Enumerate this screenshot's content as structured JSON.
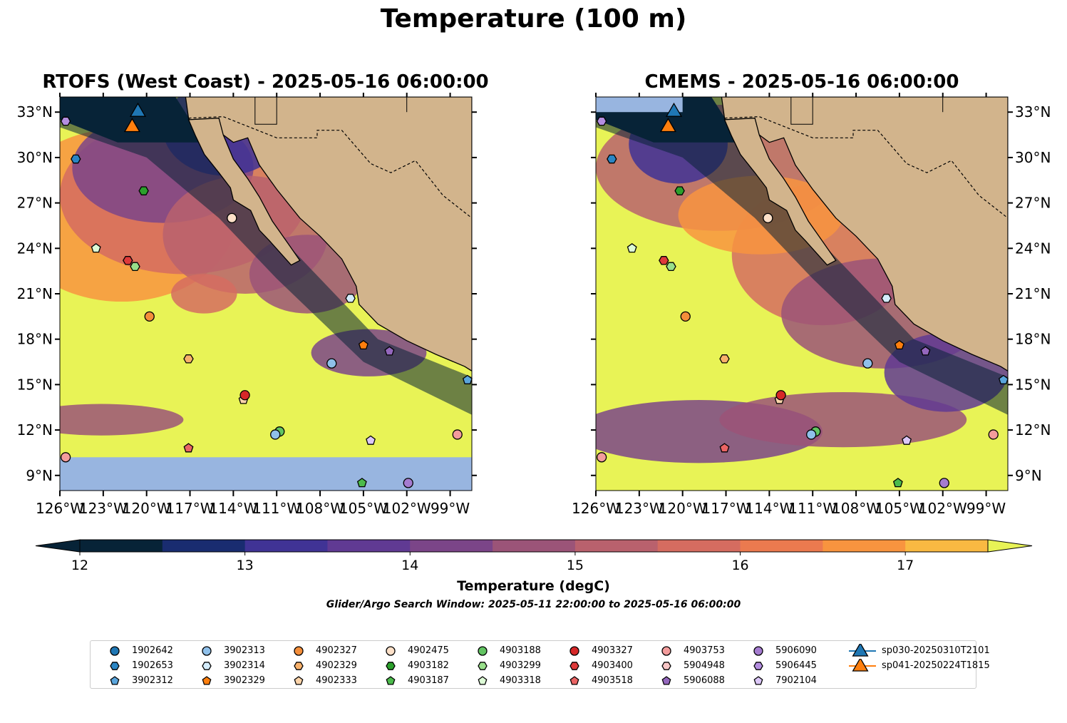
{
  "title": "Temperature (100 m)",
  "panels": [
    {
      "title": "RTOFS (West Coast) - 2025-05-16 06:00:00",
      "model": "rtofs"
    },
    {
      "title": "CMEMS - 2025-05-16 06:00:00",
      "model": "cmems"
    }
  ],
  "map": {
    "lon_range": [
      -126,
      -97.5
    ],
    "lat_range": [
      8,
      34
    ],
    "lon_ticks": [
      "126°W",
      "123°W",
      "120°W",
      "117°W",
      "114°W",
      "111°W",
      "108°W",
      "105°W",
      "102°W",
      "99°W"
    ],
    "lat_ticks": [
      "9°N",
      "12°N",
      "15°N",
      "18°N",
      "21°N",
      "24°N",
      "27°N",
      "30°N",
      "33°N"
    ],
    "colors": {
      "land": "#d2b48c",
      "ocean_nodata": "#98b5e0",
      "cold": "#072337",
      "warm": "#e8f356"
    }
  },
  "colorbar": {
    "label": "Temperature (degC)",
    "ticks": [
      "12",
      "13",
      "14",
      "15",
      "16",
      "17"
    ],
    "min": 12,
    "max": 17.5,
    "step": 0.5,
    "colors": [
      "#072337",
      "#192c70",
      "#403395",
      "#603a93",
      "#7b4588",
      "#9b5478",
      "#b9616d",
      "#d56c60",
      "#eb7a4f",
      "#f8943f",
      "#f9b942",
      "#e8f356"
    ]
  },
  "search_window": "Glider/Argo Search Window: 2025-05-11 22:00:00 to 2025-05-16 06:00:00",
  "floats": [
    {
      "id": "1902642",
      "marker": "circle",
      "color": "#1f77b4",
      "lon": -120.0,
      "lat": 8.0,
      "show": false
    },
    {
      "id": "1902653",
      "marker": "hexagon",
      "color": "#2a85c4",
      "lon": -124.9,
      "lat": 29.9
    },
    {
      "id": "3902312",
      "marker": "pentagon",
      "color": "#5aa5dc",
      "lon": -97.8,
      "lat": 15.3
    },
    {
      "id": "3902313",
      "marker": "circle",
      "color": "#8fc0ea",
      "lon": -107.2,
      "lat": 16.4
    },
    {
      "id": "3902314",
      "marker": "hexagon",
      "color": "#d4ecfb",
      "lon": -105.9,
      "lat": 20.7
    },
    {
      "id": "3902329",
      "marker": "pentagon",
      "color": "#ff7f0e",
      "lon": -105.0,
      "lat": 17.6
    },
    {
      "id": "4902327",
      "marker": "circle",
      "color": "#f48e3a",
      "lon": -119.8,
      "lat": 19.5
    },
    {
      "id": "4902329",
      "marker": "hexagon",
      "color": "#f8b16b",
      "lon": -117.1,
      "lat": 16.7
    },
    {
      "id": "4902333",
      "marker": "pentagon",
      "color": "#fdd4aa",
      "lon": -113.3,
      "lat": 14.0
    },
    {
      "id": "4902475",
      "marker": "circle",
      "color": "#fde0c8",
      "lon": -114.1,
      "lat": 26.0
    },
    {
      "id": "4903182",
      "marker": "hexagon",
      "color": "#2ca02c",
      "lon": -120.2,
      "lat": 27.8
    },
    {
      "id": "4903187",
      "marker": "pentagon",
      "color": "#4cbb4c",
      "lon": -105.1,
      "lat": 8.5
    },
    {
      "id": "4903188",
      "marker": "circle",
      "color": "#62c462",
      "lon": -110.8,
      "lat": 11.9
    },
    {
      "id": "4903299",
      "marker": "hexagon",
      "color": "#98df8a",
      "lon": -120.8,
      "lat": 22.8
    },
    {
      "id": "4903318",
      "marker": "pentagon",
      "color": "#ddfbd6",
      "lon": -123.5,
      "lat": 24.0
    },
    {
      "id": "4903327",
      "marker": "circle",
      "color": "#d62728",
      "lon": -113.2,
      "lat": 14.3
    },
    {
      "id": "4903400",
      "marker": "hexagon",
      "color": "#de3a3a",
      "lon": -121.3,
      "lat": 23.2
    },
    {
      "id": "4903518",
      "marker": "pentagon",
      "color": "#ea6464",
      "lon": -117.1,
      "lat": 10.8
    },
    {
      "id": "4903753",
      "marker": "circle",
      "color": "#f39c9c",
      "lon": -125.6,
      "lat": 10.2
    },
    {
      "id": "5904948",
      "marker": "hexagon",
      "color": "#f8c6c6",
      "lon": -126.0,
      "lat": 8.0,
      "show": false
    },
    {
      "id": "5906088",
      "marker": "pentagon",
      "color": "#9467bd",
      "lon": -126.0,
      "lat": 8.0,
      "show": false
    },
    {
      "id": "5906090",
      "marker": "circle",
      "color": "#a57cd0",
      "lon": -101.9,
      "lat": 8.5
    },
    {
      "id": "5906445",
      "marker": "hexagon",
      "color": "#b48ee0",
      "lon": -125.6,
      "lat": 32.4
    },
    {
      "id": "7902104",
      "marker": "pentagon",
      "color": "#dcc8f8",
      "lon": -104.5,
      "lat": 11.3
    },
    {
      "id": "x3902313b",
      "marker": "circle",
      "color": "#8fc0ea",
      "lon": -111.1,
      "lat": 11.7,
      "show_only": true,
      "legend": false
    },
    {
      "id": "x5906088b",
      "marker": "pentagon",
      "color": "#9467bd",
      "lon": -103.2,
      "lat": 17.2,
      "show_only": true,
      "legend": false
    },
    {
      "id": "x4903753b",
      "marker": "circle",
      "color": "#f39c9c",
      "lon": -98.5,
      "lat": 11.7,
      "show_only": true,
      "legend": false
    }
  ],
  "gliders": [
    {
      "id": "sp030-20250310T2101",
      "color": "#1f77b4",
      "lon": -120.6,
      "lat": 33.0
    },
    {
      "id": "sp041-20250224T1815",
      "color": "#ff7f0e",
      "lon": -121.0,
      "lat": 32.0
    }
  ]
}
